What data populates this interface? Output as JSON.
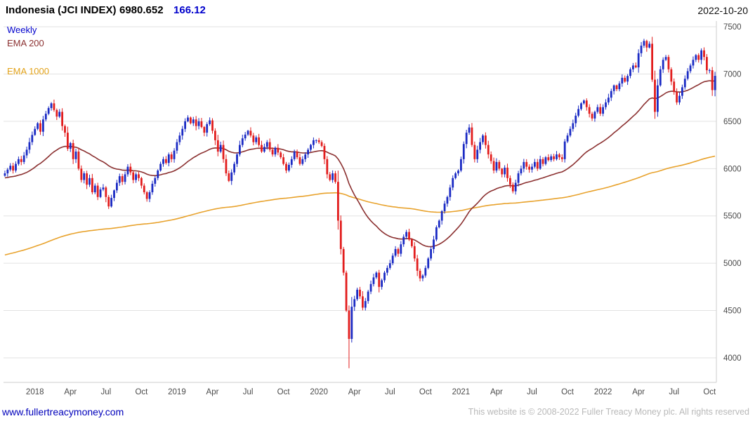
{
  "header": {
    "name": "Indonesia (JCI INDEX)",
    "price": "6980.652",
    "change": "166.12",
    "date": "2022-10-20"
  },
  "legend": {
    "weekly": "Weekly",
    "ema200": "EMA 200",
    "ema1000": "EMA 1000"
  },
  "footer": {
    "link": "www.fullertreacymoney.com",
    "copyright": "This website is © 2008-2022 Fuller Treacy Money plc. All rights reserved"
  },
  "colors": {
    "up": "#1b2bc4",
    "down": "#e21d1d",
    "ema200": "#8b3030",
    "ema1000": "#e8a22c",
    "grid": "#e2e2e2",
    "plot_border": "#cccccc",
    "axis_text": "#4a4a4a",
    "link": "#0000bb",
    "accent_blue": "#0000cc"
  },
  "chart_data": {
    "type": "candlestick",
    "title": "Indonesia (JCI INDEX)",
    "interval": "Weekly",
    "last_price": 6980.652,
    "change": 166.12,
    "date": "2022-10-20",
    "ylabel": "",
    "xlabel": "",
    "grid": "horizontal",
    "legend_position": "top-left",
    "ylim": [
      3740,
      7560
    ],
    "yticks": [
      4000,
      4500,
      5000,
      5500,
      6000,
      6500,
      7000,
      7500
    ],
    "xticks": [
      {
        "label": "2018",
        "week": 11
      },
      {
        "label": "Apr",
        "week": 24
      },
      {
        "label": "Jul",
        "week": 37
      },
      {
        "label": "Oct",
        "week": 50
      },
      {
        "label": "2019",
        "week": 63
      },
      {
        "label": "Apr",
        "week": 76
      },
      {
        "label": "Jul",
        "week": 89
      },
      {
        "label": "Oct",
        "week": 102
      },
      {
        "label": "2020",
        "week": 115
      },
      {
        "label": "Apr",
        "week": 128
      },
      {
        "label": "Jul",
        "week": 141
      },
      {
        "label": "Oct",
        "week": 154
      },
      {
        "label": "2021",
        "week": 167
      },
      {
        "label": "Apr",
        "week": 180
      },
      {
        "label": "Jul",
        "week": 193
      },
      {
        "label": "Oct",
        "week": 206
      },
      {
        "label": "2022",
        "week": 219
      },
      {
        "label": "Apr",
        "week": 232
      },
      {
        "label": "Jul",
        "week": 245
      },
      {
        "label": "Oct",
        "week": 258
      }
    ],
    "weekly_closes": [
      5950,
      5990,
      6030,
      5980,
      6050,
      6100,
      6070,
      6140,
      6200,
      6280,
      6356,
      6420,
      6480,
      6390,
      6520,
      6580,
      6640,
      6690,
      6620,
      6550,
      6600,
      6450,
      6380,
      6210,
      6270,
      6100,
      6180,
      6000,
      5880,
      5950,
      5830,
      5900,
      5750,
      5820,
      5700,
      5780,
      5800,
      5700,
      5600,
      5690,
      5770,
      5850,
      5920,
      5860,
      5940,
      6020,
      5960,
      5880,
      5940,
      5900,
      5820,
      5750,
      5680,
      5750,
      5840,
      5900,
      5980,
      6050,
      6100,
      6060,
      6150,
      6100,
      6190,
      6280,
      6350,
      6420,
      6500,
      6540,
      6480,
      6520,
      6450,
      6500,
      6440,
      6380,
      6470,
      6510,
      6400,
      6300,
      6180,
      6250,
      6100,
      5950,
      5870,
      5960,
      6050,
      6150,
      6250,
      6320,
      6360,
      6400,
      6350,
      6280,
      6330,
      6250,
      6180,
      6230,
      6280,
      6200,
      6150,
      6220,
      6170,
      6120,
      6050,
      5980,
      6040,
      6100,
      6180,
      6120,
      6050,
      6100,
      6150,
      6200,
      6250,
      6300,
      6300,
      6280,
      6240,
      6100,
      5940,
      5880,
      5950,
      5860,
      5450,
      5150,
      4900,
      4500,
      4200,
      4540,
      4620,
      4720,
      4650,
      4530,
      4600,
      4700,
      4780,
      4850,
      4900,
      4750,
      4820,
      4900,
      4950,
      5000,
      5080,
      5150,
      5100,
      5200,
      5280,
      5330,
      5250,
      5180,
      5050,
      4920,
      4840,
      4870,
      4950,
      5050,
      5150,
      5250,
      5380,
      5450,
      5550,
      5630,
      5700,
      5800,
      5900,
      5950,
      5979,
      6100,
      6260,
      6380,
      6435,
      6250,
      6100,
      6200,
      6280,
      6350,
      6250,
      6150,
      6080,
      5980,
      6070,
      6000,
      5940,
      6010,
      5900,
      5830,
      5760,
      5850,
      5950,
      6000,
      6070,
      6020,
      5990,
      6020,
      6070,
      6000,
      6100,
      6050,
      6120,
      6090,
      6130,
      6100,
      6150,
      6120,
      6100,
      6287,
      6350,
      6420,
      6480,
      6560,
      6630,
      6690,
      6720,
      6650,
      6580,
      6530,
      6600,
      6650,
      6581,
      6650,
      6700,
      6750,
      6820,
      6880,
      6840,
      6900,
      6960,
      6920,
      6980,
      7050,
      7090,
      7070,
      7220,
      7300,
      7350,
      7280,
      7320,
      6940,
      6600,
      6880,
      7050,
      7150,
      7180,
      7050,
      6920,
      6810,
      6700,
      6770,
      6860,
      6950,
      7030,
      7090,
      7150,
      7200,
      7150,
      7250,
      7180,
      7040,
      7040,
      6830,
      6981
    ],
    "low_overrides": {
      "126": 3890
    },
    "overlays": [
      {
        "name": "EMA 200",
        "alpha": 0.0488,
        "seed": 5900,
        "color_key": "ema200"
      },
      {
        "name": "EMA 1000",
        "alpha": 0.008,
        "seed": 5080,
        "color_key": "ema1000"
      }
    ]
  }
}
